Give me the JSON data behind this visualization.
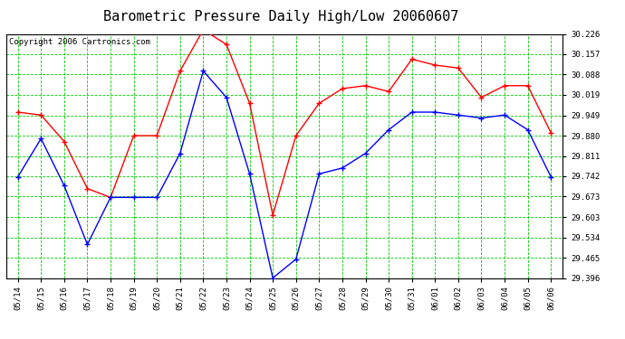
{
  "title": "Barometric Pressure Daily High/Low 20060607",
  "copyright": "Copyright 2006 Cartronics.com",
  "x_labels": [
    "05/14",
    "05/15",
    "05/16",
    "05/17",
    "05/18",
    "05/19",
    "05/20",
    "05/21",
    "05/22",
    "05/23",
    "05/24",
    "05/25",
    "05/26",
    "05/27",
    "05/28",
    "05/29",
    "05/30",
    "05/31",
    "06/01",
    "06/02",
    "06/03",
    "06/04",
    "06/05",
    "06/06"
  ],
  "high_values": [
    29.96,
    29.95,
    29.86,
    29.7,
    29.67,
    29.88,
    29.88,
    30.1,
    30.24,
    30.19,
    29.99,
    29.61,
    29.88,
    29.99,
    30.04,
    30.05,
    30.03,
    30.14,
    30.12,
    30.11,
    30.01,
    30.05,
    30.05,
    29.89
  ],
  "low_values": [
    29.74,
    29.87,
    29.71,
    29.51,
    29.67,
    29.67,
    29.67,
    29.82,
    30.1,
    30.01,
    29.75,
    29.396,
    29.46,
    29.75,
    29.77,
    29.82,
    29.9,
    29.96,
    29.96,
    29.95,
    29.94,
    29.95,
    29.9,
    29.74
  ],
  "y_ticks": [
    29.396,
    29.465,
    29.534,
    29.603,
    29.673,
    29.742,
    29.811,
    29.88,
    29.949,
    30.019,
    30.088,
    30.157,
    30.226
  ],
  "y_min": 29.396,
  "y_max": 30.226,
  "high_color": "#ff0000",
  "low_color": "#0000ff",
  "grid_color": "#00cc00",
  "bg_color": "#ffffff",
  "plot_bg_color": "#ffffff",
  "title_fontsize": 11,
  "copyright_fontsize": 6.5
}
